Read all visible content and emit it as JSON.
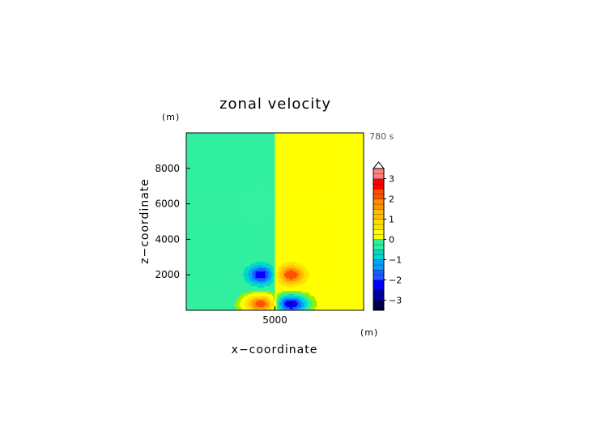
{
  "chart_data": {
    "type": "heatmap",
    "title": "zonal velocity",
    "xlabel": "x−coordinate",
    "ylabel": "z−coordinate",
    "x_unit": "(m)",
    "y_unit": "(m)",
    "time_label": "780 s",
    "xlim": [
      0,
      10000
    ],
    "ylim": [
      0,
      10000
    ],
    "x_ticks": [
      {
        "value": 5000,
        "label": "5000"
      }
    ],
    "y_ticks": [
      {
        "value": 2000,
        "label": "2000"
      },
      {
        "value": 4000,
        "label": "4000"
      },
      {
        "value": 6000,
        "label": "6000"
      },
      {
        "value": 8000,
        "label": "8000"
      }
    ],
    "grid": false,
    "background_split": {
      "x": 5000,
      "left_value": -0.2,
      "right_value": 0.2
    },
    "features": [
      {
        "x": 4200,
        "z": 2000,
        "peak": -2.2,
        "sx": 700,
        "sz": 500,
        "sign": "negative"
      },
      {
        "x": 5900,
        "z": 2000,
        "peak": 2.3,
        "sx": 700,
        "sz": 500,
        "sign": "positive"
      },
      {
        "x": 4200,
        "z": 350,
        "peak": 2.6,
        "sx": 800,
        "sz": 450,
        "sign": "positive"
      },
      {
        "x": 5900,
        "z": 350,
        "peak": -2.8,
        "sx": 800,
        "sz": 450,
        "sign": "negative"
      }
    ],
    "colorbar": {
      "range": [
        -3.5,
        3.5
      ],
      "step": 0.25,
      "extend": "max",
      "tick_labels": [
        {
          "value": 3,
          "label": "3"
        },
        {
          "value": 2,
          "label": "2"
        },
        {
          "value": 1,
          "label": "1"
        },
        {
          "value": 0,
          "label": "0"
        },
        {
          "value": -1,
          "label": "−1"
        },
        {
          "value": -2,
          "label": "−2"
        },
        {
          "value": -3,
          "label": "−3"
        }
      ],
      "color_stops": [
        {
          "value": -3.5,
          "color": "#00004a"
        },
        {
          "value": -3.0,
          "color": "#0000a0"
        },
        {
          "value": -2.5,
          "color": "#0000ff"
        },
        {
          "value": -2.0,
          "color": "#1e5aff"
        },
        {
          "value": -1.5,
          "color": "#00a0ff"
        },
        {
          "value": -1.0,
          "color": "#00d8c8"
        },
        {
          "value": -0.5,
          "color": "#30f0a0"
        },
        {
          "value": -0.1,
          "color": "#96f000"
        },
        {
          "value": 0.1,
          "color": "#ffff00"
        },
        {
          "value": 0.5,
          "color": "#ffe200"
        },
        {
          "value": 1.0,
          "color": "#ffc000"
        },
        {
          "value": 1.5,
          "color": "#ff9000"
        },
        {
          "value": 2.0,
          "color": "#ff5000"
        },
        {
          "value": 2.5,
          "color": "#ff0000"
        },
        {
          "value": 3.0,
          "color": "#ff8080"
        },
        {
          "value": 3.5,
          "color": "#ffb0b0"
        }
      ]
    }
  }
}
